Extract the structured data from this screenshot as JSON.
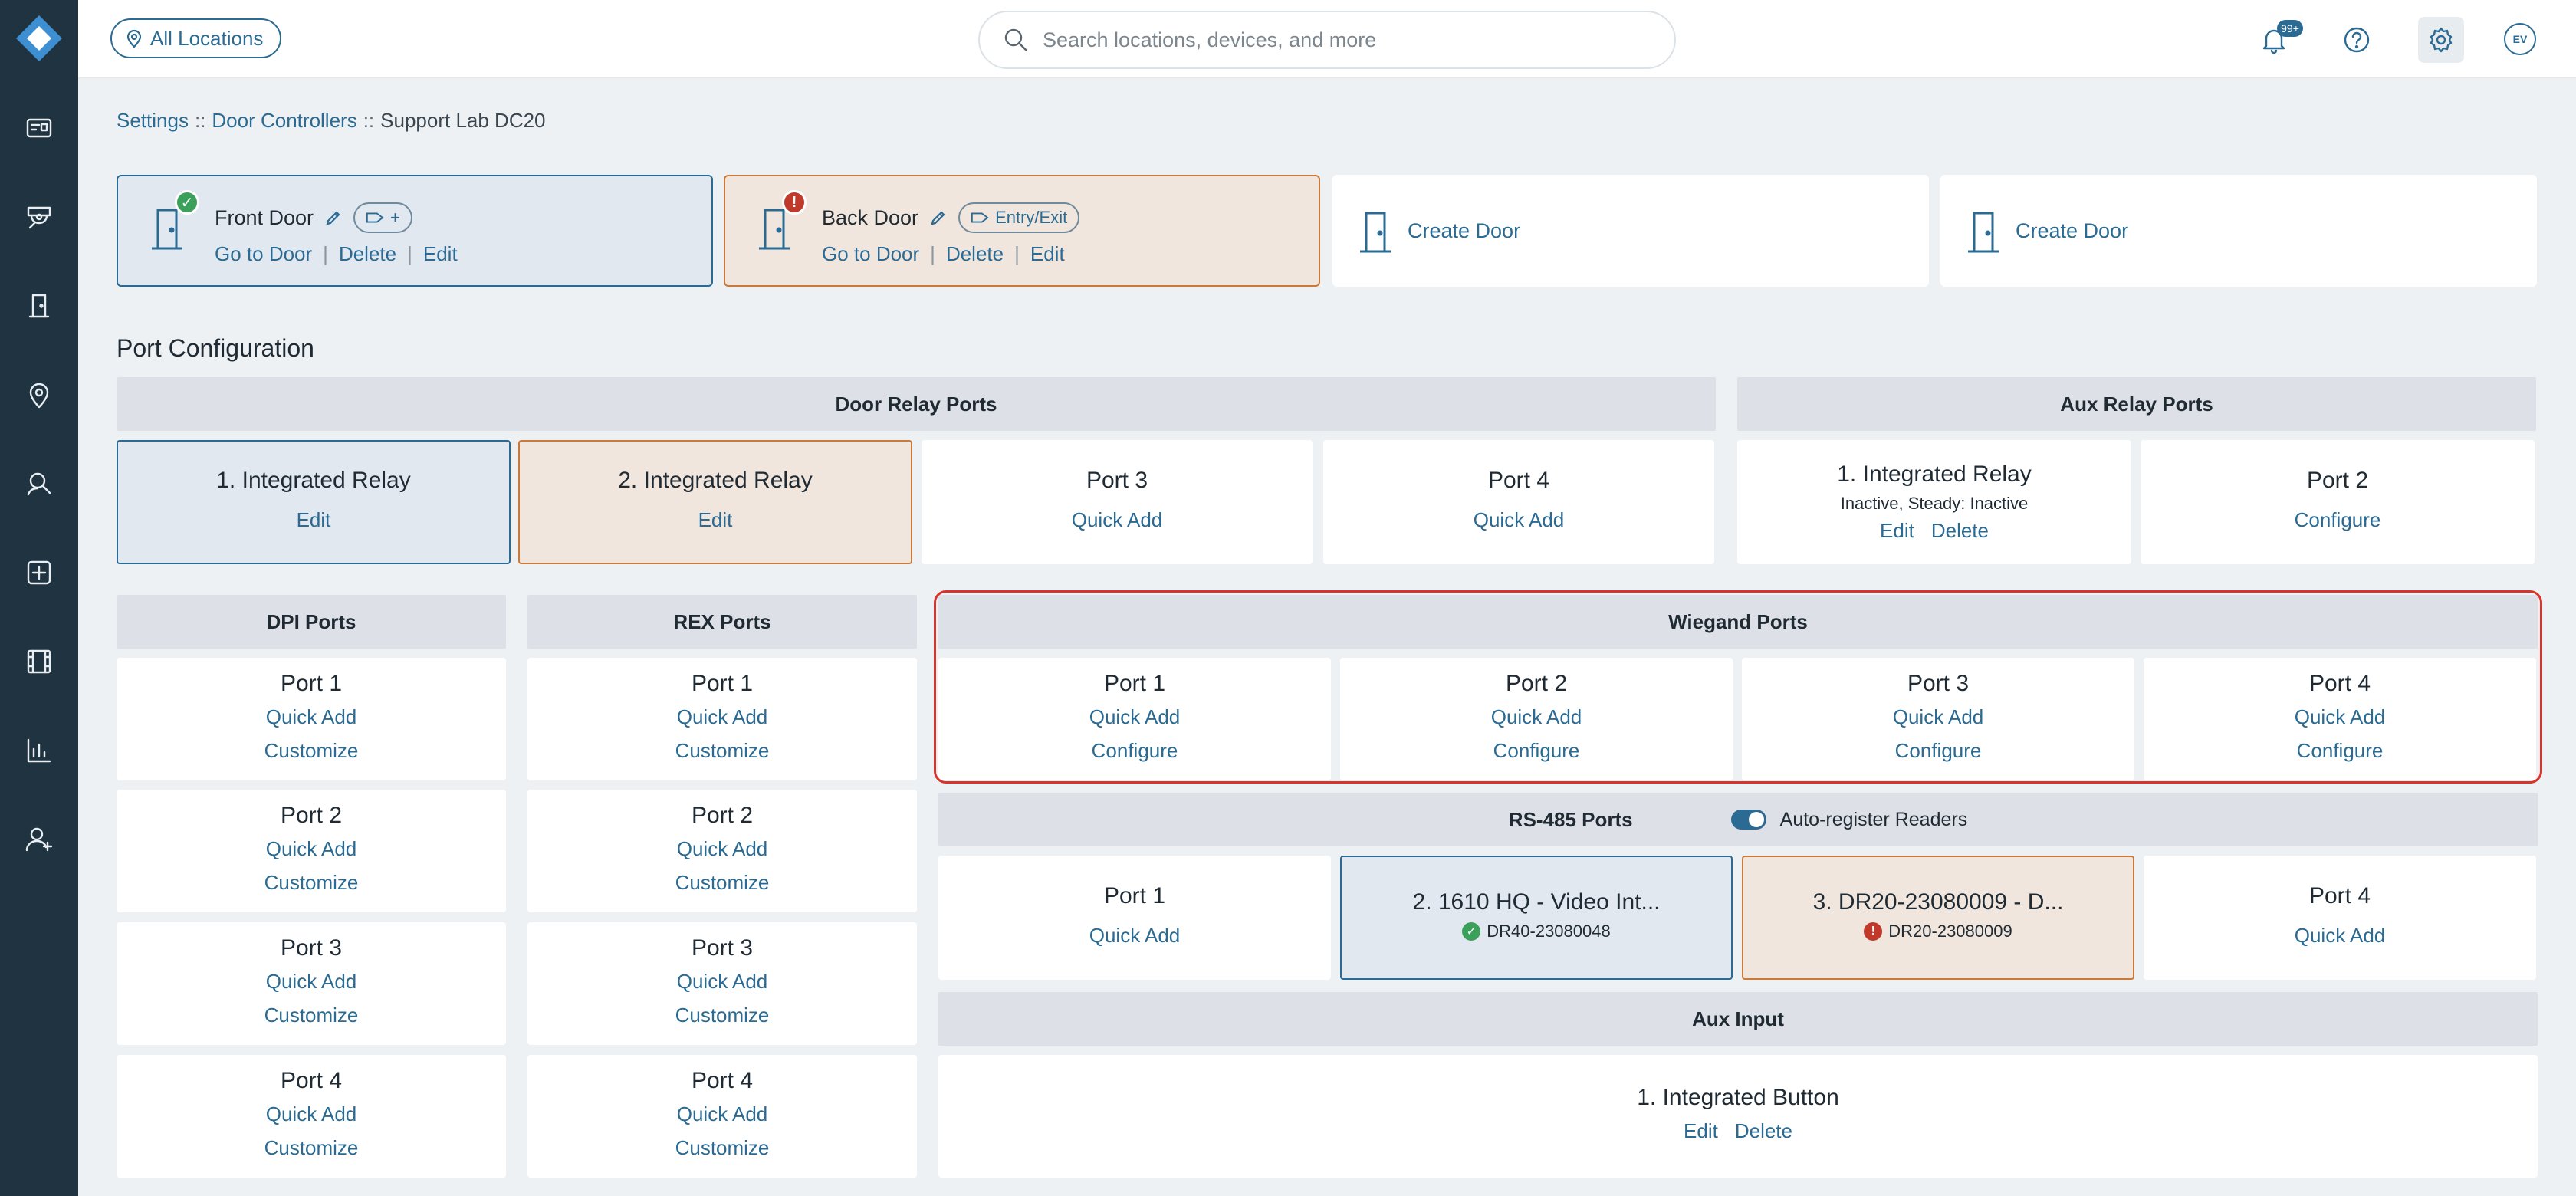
{
  "colors": {
    "accent": "#2b6a92",
    "sidebar": "#1f3340",
    "ok": "#3aa05a",
    "error": "#c0392b",
    "highlight": "#d9342b"
  },
  "topbar": {
    "location_chip": "All Locations",
    "search_placeholder": "Search locations, devices, and more",
    "notifications_badge": "99+",
    "avatar_initials": "EV"
  },
  "breadcrumb": {
    "item1": "Settings",
    "sep": "::",
    "item2": "Door Controllers",
    "item3": "Support Lab DC20"
  },
  "doors": {
    "front": {
      "name": "Front Door",
      "tag": "+",
      "goto": "Go to Door",
      "delete": "Delete",
      "edit": "Edit",
      "sep": "|"
    },
    "back": {
      "name": "Back Door",
      "tag": "Entry/Exit",
      "status": "!",
      "goto": "Go to Door",
      "delete": "Delete",
      "edit": "Edit",
      "sep": "|"
    },
    "create1": "Create Door",
    "create2": "Create Door"
  },
  "section_title": "Port Configuration",
  "door_relay": {
    "header": "Door Relay Ports",
    "ports": [
      {
        "title": "1.  Integrated Relay",
        "action": "Edit"
      },
      {
        "title": "2.  Integrated Relay",
        "action": "Edit"
      },
      {
        "title": "Port 3",
        "action": "Quick Add"
      },
      {
        "title": "Port 4",
        "action": "Quick Add"
      }
    ]
  },
  "aux_relay": {
    "header": "Aux Relay Ports",
    "port1": {
      "title": "1.  Integrated Relay",
      "status": "Inactive, Steady: Inactive",
      "edit": "Edit",
      "delete": "Delete"
    },
    "port2": {
      "title": "Port 2",
      "action": "Configure"
    }
  },
  "dpi": {
    "header": "DPI Ports",
    "ports": [
      {
        "title": "Port 1",
        "a1": "Quick Add",
        "a2": "Customize"
      },
      {
        "title": "Port 2",
        "a1": "Quick Add",
        "a2": "Customize"
      },
      {
        "title": "Port 3",
        "a1": "Quick Add",
        "a2": "Customize"
      },
      {
        "title": "Port 4",
        "a1": "Quick Add",
        "a2": "Customize"
      }
    ]
  },
  "rex": {
    "header": "REX Ports",
    "ports": [
      {
        "title": "Port 1",
        "a1": "Quick Add",
        "a2": "Customize"
      },
      {
        "title": "Port 2",
        "a1": "Quick Add",
        "a2": "Customize"
      },
      {
        "title": "Port 3",
        "a1": "Quick Add",
        "a2": "Customize"
      },
      {
        "title": "Port 4",
        "a1": "Quick Add",
        "a2": "Customize"
      }
    ]
  },
  "wiegand": {
    "header": "Wiegand Ports",
    "ports": [
      {
        "title": "Port 1",
        "a1": "Quick Add",
        "a2": "Configure"
      },
      {
        "title": "Port 2",
        "a1": "Quick Add",
        "a2": "Configure"
      },
      {
        "title": "Port 3",
        "a1": "Quick Add",
        "a2": "Configure"
      },
      {
        "title": "Port 4",
        "a1": "Quick Add",
        "a2": "Configure"
      }
    ]
  },
  "rs485": {
    "header": "RS-485 Ports",
    "auto_register": "Auto-register Readers",
    "port1": {
      "title": "Port 1",
      "action": "Quick Add"
    },
    "port2": {
      "title": "2.  1610 HQ - Video Int...",
      "device": "DR40-23080048"
    },
    "port3": {
      "title": "3.  DR20-23080009 - D...",
      "device": "DR20-23080009",
      "status": "!"
    },
    "port4": {
      "title": "Port 4",
      "action": "Quick Add"
    }
  },
  "aux_input": {
    "header": "Aux Input",
    "port1": {
      "title": "1.  Integrated Button",
      "edit": "Edit",
      "delete": "Delete"
    }
  }
}
